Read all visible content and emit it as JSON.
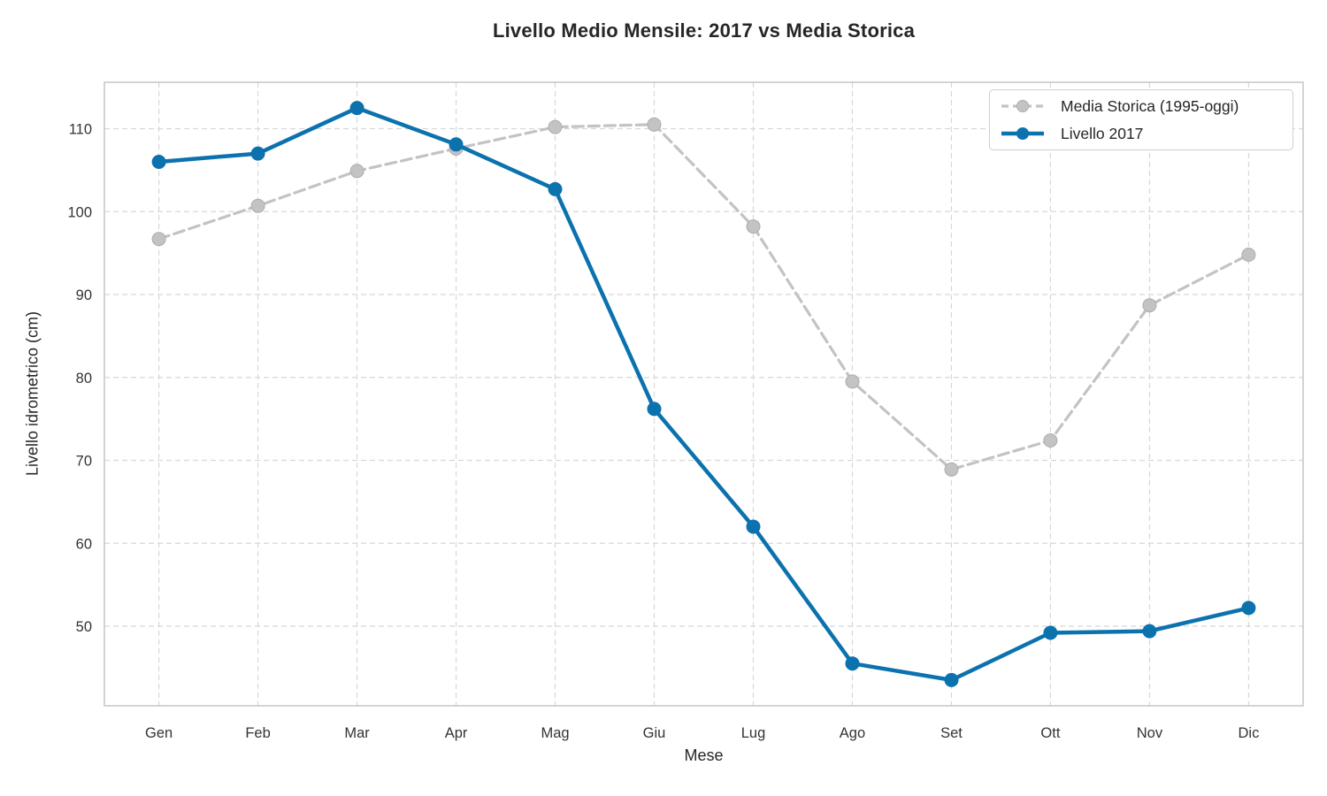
{
  "figure": {
    "kind": "line-chart-figure"
  },
  "chart_data": {
    "type": "line",
    "title": "Livello Medio Mensile: 2017 vs Media Storica",
    "xlabel": "Mese",
    "ylabel": "Livello idrometrico (cm)",
    "categories": [
      "Gen",
      "Feb",
      "Mar",
      "Apr",
      "Mag",
      "Giu",
      "Lug",
      "Ago",
      "Set",
      "Ott",
      "Nov",
      "Dic"
    ],
    "yticks": [
      50,
      60,
      70,
      80,
      90,
      100,
      110
    ],
    "ylim": [
      40.4,
      115.6
    ],
    "grid": true,
    "grid_style": "dashed",
    "legend_position": "upper right",
    "series": [
      {
        "name": "Media Storica (1995-oggi)",
        "style": "dashed",
        "marker": "circle",
        "color": "#c3c3c3",
        "values": [
          96.7,
          100.7,
          104.9,
          107.6,
          110.2,
          110.5,
          98.2,
          79.5,
          68.9,
          72.4,
          88.7,
          94.8
        ]
      },
      {
        "name": "Livello 2017",
        "style": "solid",
        "marker": "circle",
        "color": "#0b72ae",
        "values": [
          106.0,
          107.0,
          112.5,
          108.1,
          102.7,
          76.2,
          62.0,
          45.5,
          43.5,
          49.2,
          49.4,
          52.2
        ]
      }
    ]
  },
  "colors": {
    "grid": "#d8d8d8",
    "spine": "#c9c9c9",
    "tick_text": "#333333",
    "label_text": "#262626",
    "background": "#ffffff"
  }
}
